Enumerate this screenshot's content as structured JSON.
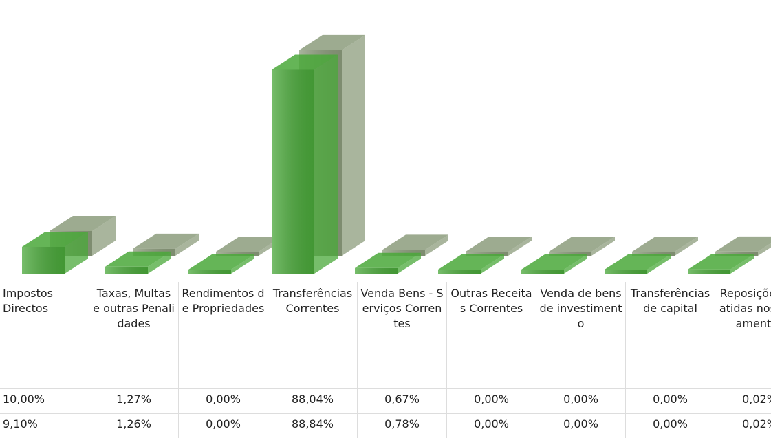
{
  "chart_data": {
    "type": "bar3d",
    "categories": [
      "Impostos Directos",
      "Taxas, Multas e outras Penalidades",
      "Rendimentos de Propriedades",
      "Transferências Correntes",
      "Venda Bens - Serviços Correntes",
      "Outras Receitas Correntes",
      "Venda de bens de investimento",
      "Transferências de capital",
      "Reposições Abatidas nos pagamentos"
    ],
    "series": [
      {
        "color": "#4aa83a",
        "values": [
          10.0,
          1.27,
          0.0,
          88.04,
          0.67,
          0.0,
          0.0,
          0.0,
          0.02
        ],
        "value_labels": [
          "10,00%",
          "1,27%",
          "0,00%",
          "88,04%",
          "0,67%",
          "0,00%",
          "0,00%",
          "0,00%",
          "0,02%"
        ]
      },
      {
        "color": "#8c9c7c",
        "values": [
          9.1,
          1.26,
          0.0,
          88.84,
          0.78,
          0.0,
          0.0,
          0.0,
          0.02
        ],
        "value_labels": [
          "9,10%",
          "1,26%",
          "0,00%",
          "88,84%",
          "0,78%",
          "0,00%",
          "0,00%",
          "0,00%",
          "0,02%"
        ]
      }
    ],
    "ylim": [
      0,
      100
    ]
  }
}
